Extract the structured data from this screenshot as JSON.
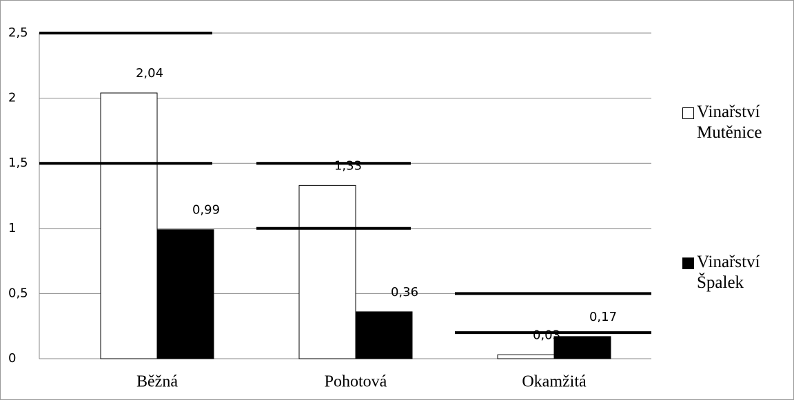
{
  "chart_data": {
    "type": "bar",
    "categories": [
      "Běžná",
      "Pohotová",
      "Okamžitá"
    ],
    "series": [
      {
        "name": "Vinařství Mutěnice",
        "color": "#ffffff",
        "values": [
          2.04,
          1.33,
          0.03
        ],
        "value_labels": [
          "2,04",
          "1,33",
          "0,03"
        ]
      },
      {
        "name": "Vinařství Špalek",
        "color": "#000000",
        "values": [
          0.99,
          0.36,
          0.17
        ],
        "value_labels": [
          "0,99",
          "0,36",
          "0,17"
        ]
      }
    ],
    "reference_ranges": [
      [
        1.5,
        2.5
      ],
      [
        1,
        1.5
      ],
      [
        0.2,
        0.5
      ]
    ],
    "ylim": [
      0,
      2.5
    ],
    "yticks": [
      0,
      {
        "value": 0.5,
        "label": "0,5"
      },
      1,
      {
        "value": 1.5,
        "label": "1,5"
      },
      2,
      {
        "value": 2.5,
        "label": "2,5"
      }
    ],
    "grid": true,
    "legend": "right"
  }
}
